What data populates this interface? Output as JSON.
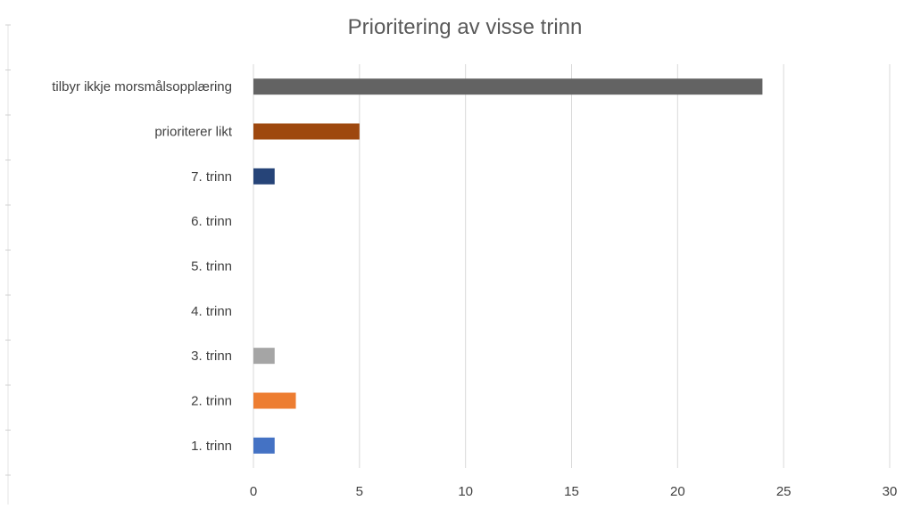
{
  "chart_data": {
    "type": "bar",
    "orientation": "horizontal",
    "title": "Prioritering av visse trinn",
    "xlabel": "",
    "ylabel": "",
    "categories": [
      "tilbyr ikkje morsmålsopplæring",
      "prioriterer likt",
      "7. trinn",
      "6. trinn",
      "5. trinn",
      "4. trinn",
      "3. trinn",
      "2. trinn",
      "1. trinn"
    ],
    "values": [
      24,
      5,
      1,
      0,
      0,
      0,
      1,
      2,
      1
    ],
    "colors": [
      "#636363",
      "#9e480e",
      "#264478",
      "#43682b",
      "#255e91",
      "#ffc000",
      "#a5a5a5",
      "#ed7d31",
      "#4472c4"
    ],
    "xlim": [
      0,
      30
    ],
    "x_ticks": [
      "0",
      "5",
      "10",
      "15",
      "20",
      "25",
      "30"
    ],
    "grid": true,
    "legend": "none"
  }
}
